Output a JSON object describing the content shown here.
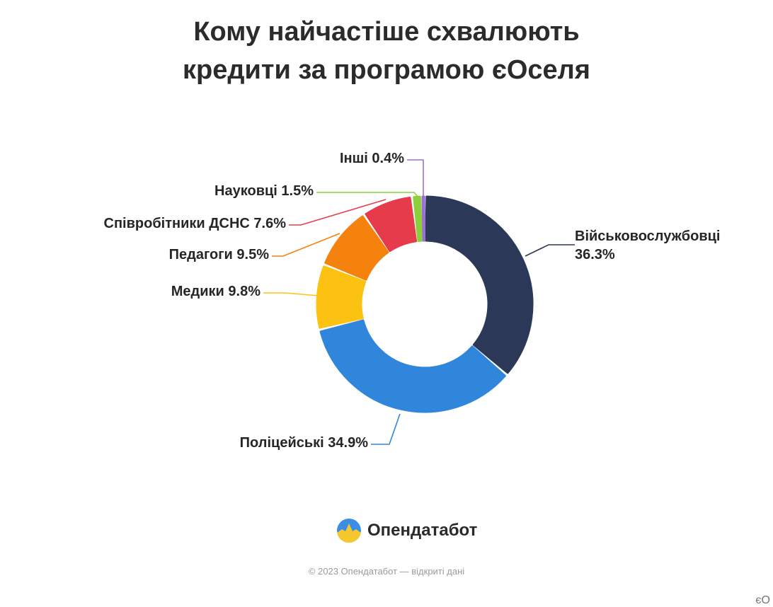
{
  "title_line1": "Кому найчастіше схвалюють",
  "title_line2": "кредити за програмою єОселя",
  "brand": {
    "name": "Опендатабот",
    "icon": "opendatabot-logo-icon"
  },
  "footer": "© 2023 Опендатабот — відкриті дані",
  "corner_text": "єО",
  "chart_data": {
    "type": "pie",
    "donut": true,
    "unit": "%",
    "title": "Кому найчастіше схвалюють кредити за програмою єОселя",
    "slices": [
      {
        "label": "Військовослужбовці",
        "value": 36.3,
        "display": "36.3%",
        "color": "#2c3857"
      },
      {
        "label": "Поліцейські",
        "value": 34.9,
        "display": "34.9%",
        "color": "#2f86db"
      },
      {
        "label": "Медики",
        "value": 9.8,
        "display": "9.8%",
        "color": "#fcc211"
      },
      {
        "label": "Педагоги",
        "value": 9.5,
        "display": "9.5%",
        "color": "#f5820d"
      },
      {
        "label": "Співробітники ДСНС",
        "value": 7.6,
        "display": "7.6%",
        "color": "#e53b4b"
      },
      {
        "label": "Науковці",
        "value": 1.5,
        "display": "1.5%",
        "color": "#8ccf3a"
      },
      {
        "label": "Інші",
        "value": 0.4,
        "display": "0.4%",
        "color": "#9b6fd3"
      }
    ]
  }
}
